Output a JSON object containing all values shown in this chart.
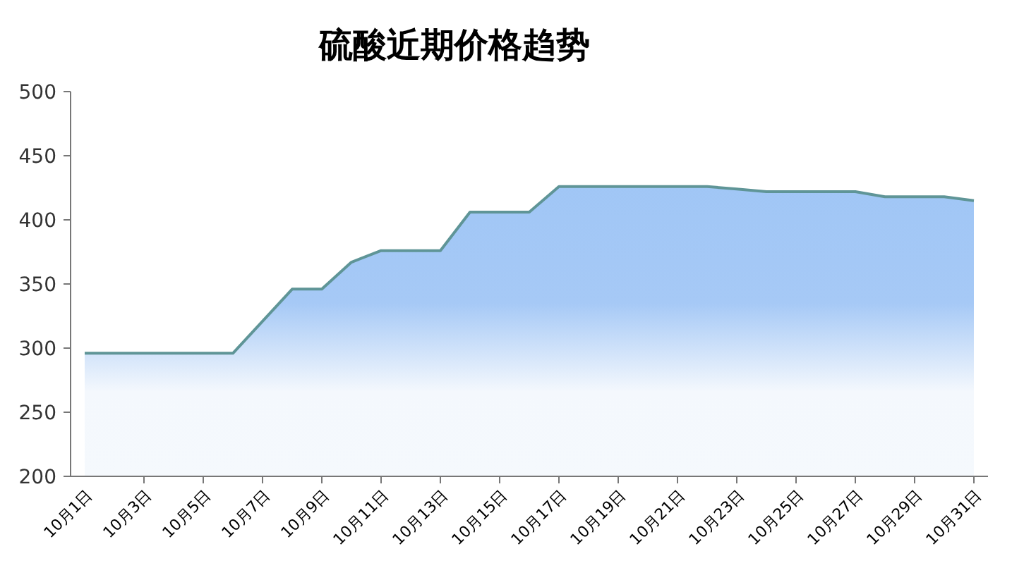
{
  "chart_data": {
    "type": "area",
    "title": "硫酸近期价格趋势",
    "categories": [
      "10月1日",
      null,
      "10月3日",
      null,
      "10月5日",
      null,
      "10月7日",
      null,
      "10月9日",
      null,
      "10月11日",
      null,
      "10月13日",
      null,
      "10月15日",
      null,
      "10月17日",
      null,
      "10月19日",
      null,
      "10月21日",
      null,
      "10月23日",
      null,
      "10月25日",
      null,
      "10月27日",
      null,
      "10月29日",
      null,
      "10月31日"
    ],
    "series": [
      {
        "color": "#5f9597",
        "values": [
          296,
          296,
          296,
          296,
          296,
          296,
          321,
          346,
          346,
          367,
          376,
          376,
          376,
          406,
          406,
          406,
          426,
          426,
          426,
          426,
          426,
          426,
          424,
          422,
          422,
          422,
          422,
          418,
          418,
          418,
          415
        ]
      }
    ],
    "ylim": [
      200,
      500
    ],
    "yticks": [
      200,
      250,
      300,
      350,
      400,
      450,
      500
    ],
    "grid": false
  }
}
